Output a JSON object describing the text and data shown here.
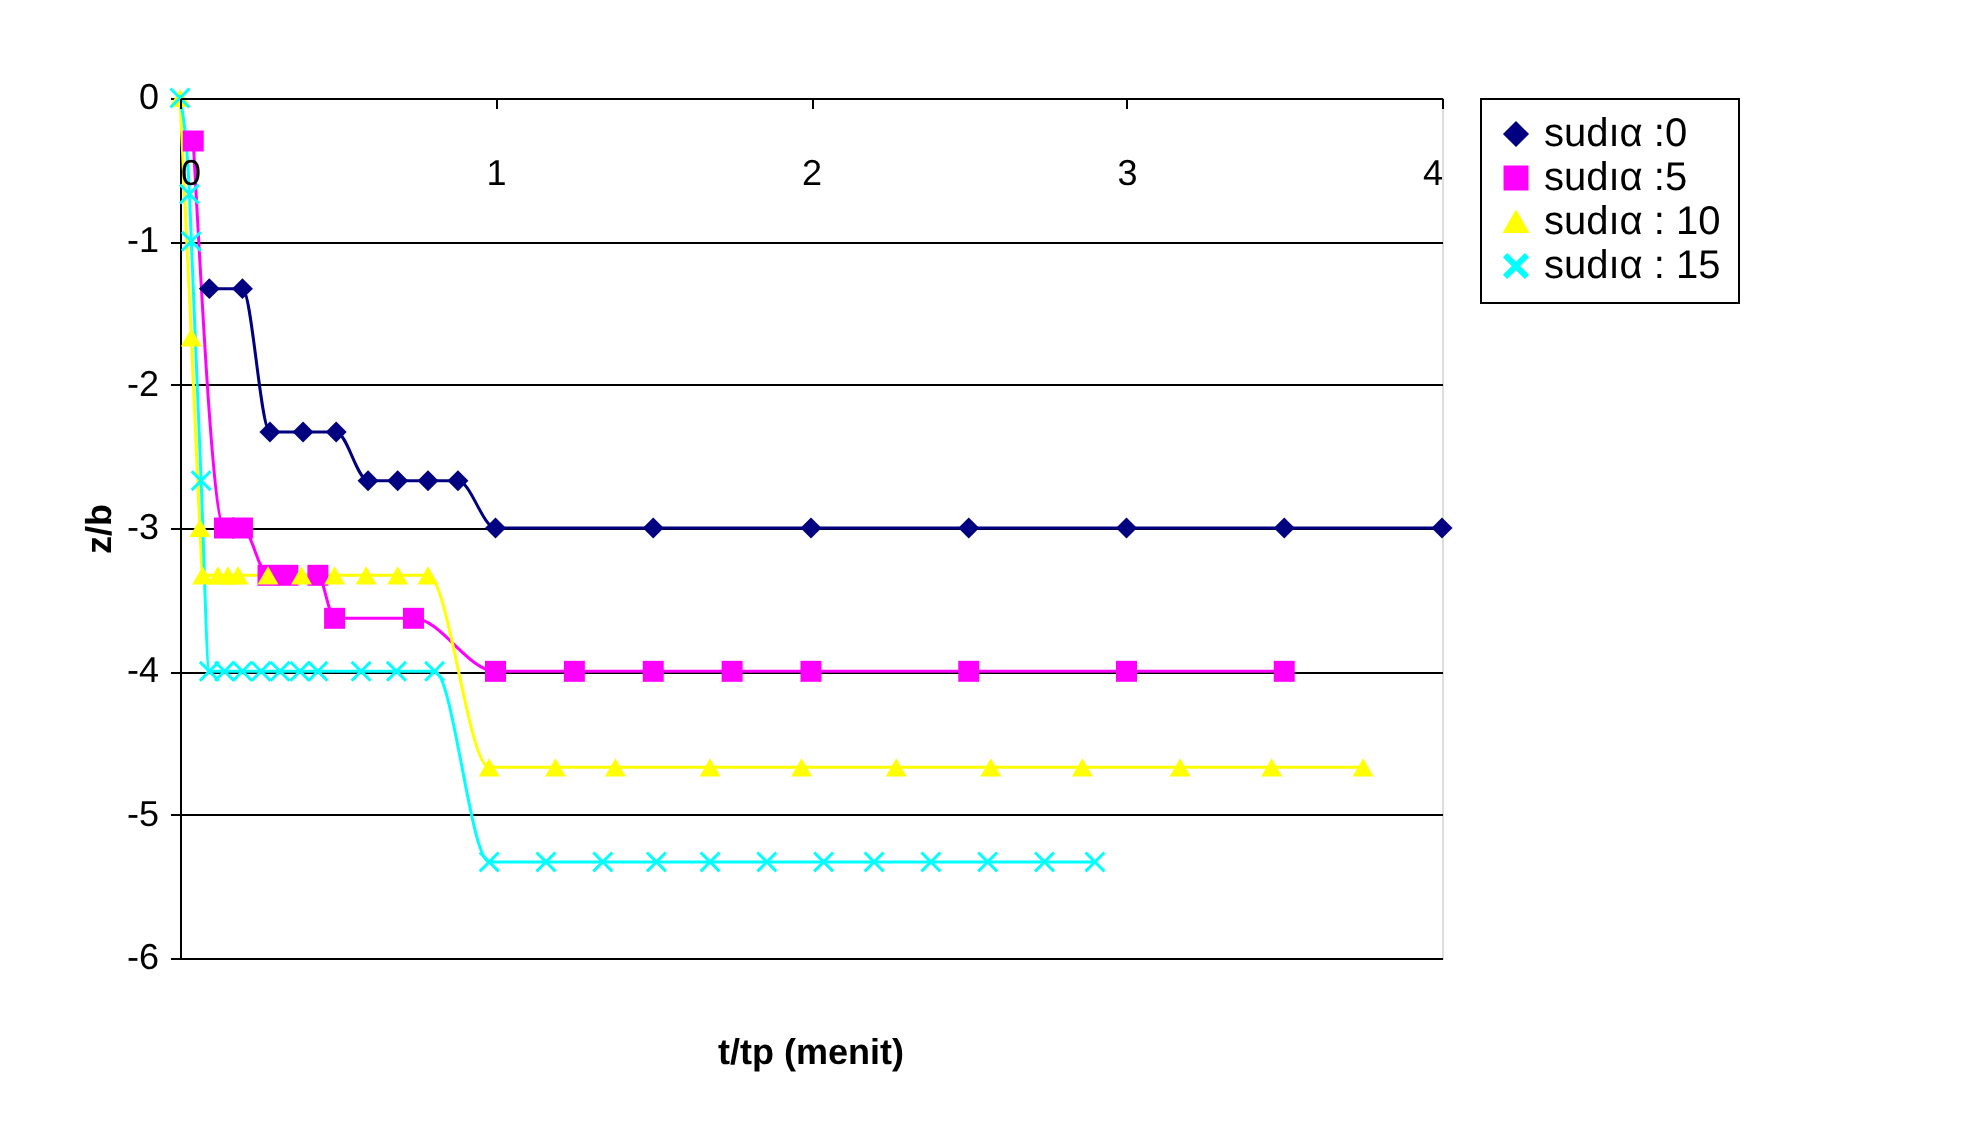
{
  "chart_data": {
    "type": "line",
    "xlabel": "t/tp (menit)",
    "ylabel": "z/b",
    "xlim": [
      0,
      4
    ],
    "ylim": [
      -6,
      0
    ],
    "xticks": [
      0,
      1,
      2,
      3,
      4
    ],
    "yticks": [
      0,
      -1,
      -2,
      -3,
      -4,
      -5,
      -6
    ],
    "grid": "y",
    "legend": "right",
    "series": [
      {
        "name": "sudıα :0",
        "color": "#000080",
        "marker": "diamond",
        "x": [
          0.093,
          0.198,
          0.285,
          0.39,
          0.495,
          0.596,
          0.69,
          0.786,
          0.881,
          1,
          1.5,
          2,
          2.5,
          3,
          3.5,
          4
        ],
        "values": [
          -1.33,
          -1.33,
          -2.33,
          -2.33,
          -2.33,
          -2.67,
          -2.67,
          -2.67,
          -2.67,
          -3,
          -3,
          -3,
          -3,
          -3,
          -3,
          -3
        ]
      },
      {
        "name": "sudıα :5",
        "color": "#ff00ff",
        "marker": "square",
        "x": [
          0.042,
          0.141,
          0.198,
          0.279,
          0.342,
          0.437,
          0.49,
          0.74,
          1,
          1.25,
          1.5,
          1.75,
          2,
          2.5,
          3,
          3.5
        ],
        "values": [
          -0.3,
          -3,
          -3,
          -3.33,
          -3.33,
          -3.33,
          -3.63,
          -3.63,
          -4,
          -4,
          -4,
          -4,
          -4,
          -4,
          -4,
          -4
        ]
      },
      {
        "name": "sudıα : 10",
        "color": "#ffff00",
        "marker": "triangle",
        "x": [
          0,
          0.036,
          0.063,
          0.072,
          0.12,
          0.152,
          0.184,
          0.279,
          0.385,
          0.49,
          0.59,
          0.69,
          0.786,
          0.98,
          1.19,
          1.38,
          1.68,
          1.97,
          2.27,
          2.57,
          2.86,
          3.17,
          3.46,
          3.75
        ],
        "values": [
          0,
          -1.67,
          -3,
          -3.33,
          -3.33,
          -3.33,
          -3.33,
          -3.33,
          -3.33,
          -3.33,
          -3.33,
          -3.33,
          -3.33,
          -4.67,
          -4.67,
          -4.67,
          -4.67,
          -4.67,
          -4.67,
          -4.67,
          -4.67,
          -4.67,
          -4.67,
          -4.67
        ]
      },
      {
        "name": "sudıα : 15",
        "color": "#00ffff",
        "marker": "cross",
        "x": [
          0,
          0.03,
          0.036,
          0.067,
          0.093,
          0.141,
          0.198,
          0.257,
          0.317,
          0.38,
          0.437,
          0.574,
          0.686,
          0.807,
          0.98,
          1.16,
          1.34,
          1.51,
          1.68,
          1.86,
          2.04,
          2.2,
          2.38,
          2.56,
          2.74,
          2.9
        ],
        "values": [
          0,
          -0.67,
          -1,
          -2.67,
          -4,
          -4,
          -4,
          -4,
          -4,
          -4,
          -4,
          -4,
          -4,
          -4,
          -5.33,
          -5.33,
          -5.33,
          -5.33,
          -5.33,
          -5.33,
          -5.33,
          -5.33,
          -5.33,
          -5.33,
          -5.33,
          -5.33
        ]
      }
    ]
  }
}
